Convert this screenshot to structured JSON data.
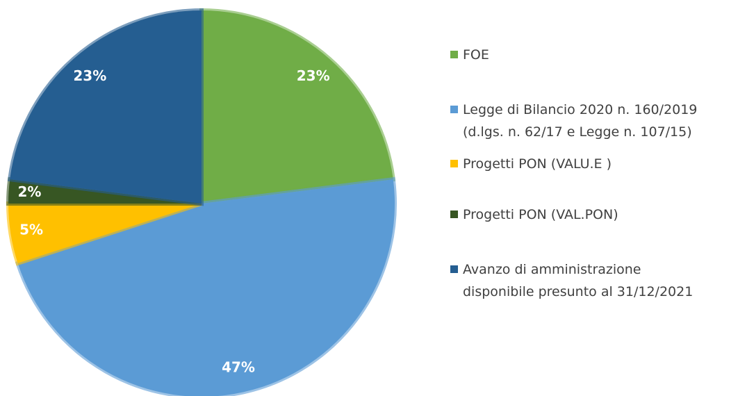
{
  "chart_data": {
    "type": "pie",
    "categories": [
      "FOE",
      "Legge di Bilancio 2020 n. 160/2019\n(d.lgs. n. 62/17 e Legge n. 107/15)",
      "Progetti PON (VALU.E )",
      "Progetti PON (VAL.PON)",
      "Avanzo di amministrazione\ndisponibile presunto al 31/12/2021"
    ],
    "values": [
      23,
      47,
      5,
      2,
      23
    ],
    "value_labels": [
      "23%",
      "47%",
      "5%",
      "2%",
      "23%"
    ],
    "colors": [
      "#70ad47",
      "#5b9bd5",
      "#ffc000",
      "#375623",
      "#255e91"
    ],
    "legend": "right"
  }
}
